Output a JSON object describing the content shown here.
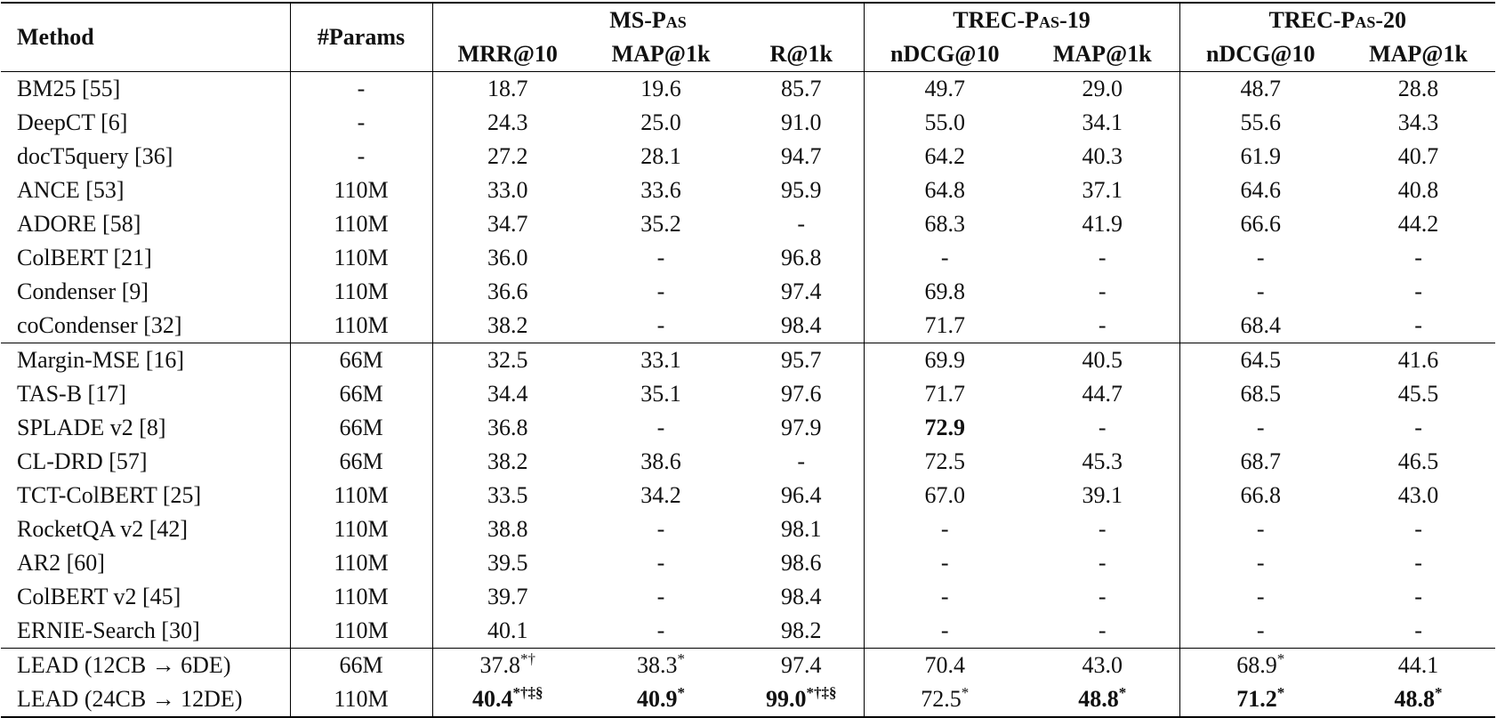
{
  "header": {
    "method": "Method",
    "params": "#Params",
    "groups": [
      {
        "label": "MS-Pas",
        "span": 3
      },
      {
        "label": "TREC-Pas-19",
        "span": 2
      },
      {
        "label": "TREC-Pas-20",
        "span": 2
      }
    ],
    "metrics": [
      "MRR@10",
      "MAP@1k",
      "R@1k",
      "nDCG@10",
      "MAP@1k",
      "nDCG@10",
      "MAP@1k"
    ]
  },
  "sections": [
    {
      "rows": [
        {
          "method": "BM25 [55]",
          "params": "-",
          "cells": [
            {
              "v": "18.7"
            },
            {
              "v": "19.6"
            },
            {
              "v": "85.7"
            },
            {
              "v": "49.7"
            },
            {
              "v": "29.0"
            },
            {
              "v": "48.7"
            },
            {
              "v": "28.8"
            }
          ]
        },
        {
          "method": "DeepCT [6]",
          "params": "-",
          "cells": [
            {
              "v": "24.3"
            },
            {
              "v": "25.0"
            },
            {
              "v": "91.0"
            },
            {
              "v": "55.0"
            },
            {
              "v": "34.1"
            },
            {
              "v": "55.6"
            },
            {
              "v": "34.3"
            }
          ]
        },
        {
          "method": "docT5query [36]",
          "params": "-",
          "cells": [
            {
              "v": "27.2"
            },
            {
              "v": "28.1"
            },
            {
              "v": "94.7"
            },
            {
              "v": "64.2"
            },
            {
              "v": "40.3"
            },
            {
              "v": "61.9"
            },
            {
              "v": "40.7"
            }
          ]
        },
        {
          "method": "ANCE [53]",
          "params": "110M",
          "cells": [
            {
              "v": "33.0"
            },
            {
              "v": "33.6"
            },
            {
              "v": "95.9"
            },
            {
              "v": "64.8"
            },
            {
              "v": "37.1"
            },
            {
              "v": "64.6"
            },
            {
              "v": "40.8"
            }
          ]
        },
        {
          "method": "ADORE [58]",
          "params": "110M",
          "cells": [
            {
              "v": "34.7"
            },
            {
              "v": "35.2"
            },
            {
              "v": "-"
            },
            {
              "v": "68.3"
            },
            {
              "v": "41.9"
            },
            {
              "v": "66.6"
            },
            {
              "v": "44.2"
            }
          ]
        },
        {
          "method": "ColBERT [21]",
          "params": "110M",
          "cells": [
            {
              "v": "36.0"
            },
            {
              "v": "-"
            },
            {
              "v": "96.8"
            },
            {
              "v": "-"
            },
            {
              "v": "-"
            },
            {
              "v": "-"
            },
            {
              "v": "-"
            }
          ]
        },
        {
          "method": "Condenser [9]",
          "params": "110M",
          "cells": [
            {
              "v": "36.6"
            },
            {
              "v": "-"
            },
            {
              "v": "97.4"
            },
            {
              "v": "69.8"
            },
            {
              "v": "-"
            },
            {
              "v": "-"
            },
            {
              "v": "-"
            }
          ]
        },
        {
          "method": "coCondenser [32]",
          "params": "110M",
          "cells": [
            {
              "v": "38.2"
            },
            {
              "v": "-"
            },
            {
              "v": "98.4"
            },
            {
              "v": "71.7"
            },
            {
              "v": "-"
            },
            {
              "v": "68.4"
            },
            {
              "v": "-"
            }
          ]
        }
      ]
    },
    {
      "rows": [
        {
          "method": "Margin-MSE [16]",
          "params": "66M",
          "cells": [
            {
              "v": "32.5"
            },
            {
              "v": "33.1"
            },
            {
              "v": "95.7"
            },
            {
              "v": "69.9"
            },
            {
              "v": "40.5"
            },
            {
              "v": "64.5"
            },
            {
              "v": "41.6"
            }
          ]
        },
        {
          "method": "TAS-B [17]",
          "params": "66M",
          "cells": [
            {
              "v": "34.4"
            },
            {
              "v": "35.1"
            },
            {
              "v": "97.6"
            },
            {
              "v": "71.7"
            },
            {
              "v": "44.7"
            },
            {
              "v": "68.5"
            },
            {
              "v": "45.5"
            }
          ]
        },
        {
          "method": "SPLADE v2 [8]",
          "params": "66M",
          "cells": [
            {
              "v": "36.8"
            },
            {
              "v": "-"
            },
            {
              "v": "97.9"
            },
            {
              "v": "72.9",
              "b": true
            },
            {
              "v": "-"
            },
            {
              "v": "-"
            },
            {
              "v": "-"
            }
          ]
        },
        {
          "method": "CL-DRD [57]",
          "params": "66M",
          "cells": [
            {
              "v": "38.2"
            },
            {
              "v": "38.6"
            },
            {
              "v": "-"
            },
            {
              "v": "72.5"
            },
            {
              "v": "45.3"
            },
            {
              "v": "68.7"
            },
            {
              "v": "46.5"
            }
          ]
        },
        {
          "method": "TCT-ColBERT [25]",
          "params": "110M",
          "cells": [
            {
              "v": "33.5"
            },
            {
              "v": "34.2"
            },
            {
              "v": "96.4"
            },
            {
              "v": "67.0"
            },
            {
              "v": "39.1"
            },
            {
              "v": "66.8"
            },
            {
              "v": "43.0"
            }
          ]
        },
        {
          "method": "RocketQA v2 [42]",
          "params": "110M",
          "cells": [
            {
              "v": "38.8"
            },
            {
              "v": "-"
            },
            {
              "v": "98.1"
            },
            {
              "v": "-"
            },
            {
              "v": "-"
            },
            {
              "v": "-"
            },
            {
              "v": "-"
            }
          ]
        },
        {
          "method": "AR2 [60]",
          "params": "110M",
          "cells": [
            {
              "v": "39.5"
            },
            {
              "v": "-"
            },
            {
              "v": "98.6"
            },
            {
              "v": "-"
            },
            {
              "v": "-"
            },
            {
              "v": "-"
            },
            {
              "v": "-"
            }
          ]
        },
        {
          "method": "ColBERT v2 [45]",
          "params": "110M",
          "cells": [
            {
              "v": "39.7"
            },
            {
              "v": "-"
            },
            {
              "v": "98.4"
            },
            {
              "v": "-"
            },
            {
              "v": "-"
            },
            {
              "v": "-"
            },
            {
              "v": "-"
            }
          ]
        },
        {
          "method": "ERNIE-Search [30]",
          "params": "110M",
          "cells": [
            {
              "v": "40.1"
            },
            {
              "v": "-"
            },
            {
              "v": "98.2"
            },
            {
              "v": "-"
            },
            {
              "v": "-"
            },
            {
              "v": "-"
            },
            {
              "v": "-"
            }
          ]
        }
      ]
    },
    {
      "rows": [
        {
          "method": "LEAD (12CB → 6DE)",
          "params": "66M",
          "cells": [
            {
              "v": "37.8",
              "s": "*†"
            },
            {
              "v": "38.3",
              "s": "*"
            },
            {
              "v": "97.4"
            },
            {
              "v": "70.4"
            },
            {
              "v": "43.0"
            },
            {
              "v": "68.9",
              "s": "*"
            },
            {
              "v": "44.1"
            }
          ]
        },
        {
          "method": "LEAD (24CB → 12DE)",
          "params": "110M",
          "cells": [
            {
              "v": "40.4",
              "s": "*†‡§",
              "b": true
            },
            {
              "v": "40.9",
              "s": "*",
              "b": true
            },
            {
              "v": "99.0",
              "s": "*†‡§",
              "b": true
            },
            {
              "v": "72.5",
              "s": "*"
            },
            {
              "v": "48.8",
              "s": "*",
              "b": true
            },
            {
              "v": "71.2",
              "s": "*",
              "b": true
            },
            {
              "v": "48.8",
              "s": "*",
              "b": true
            }
          ]
        }
      ]
    }
  ]
}
